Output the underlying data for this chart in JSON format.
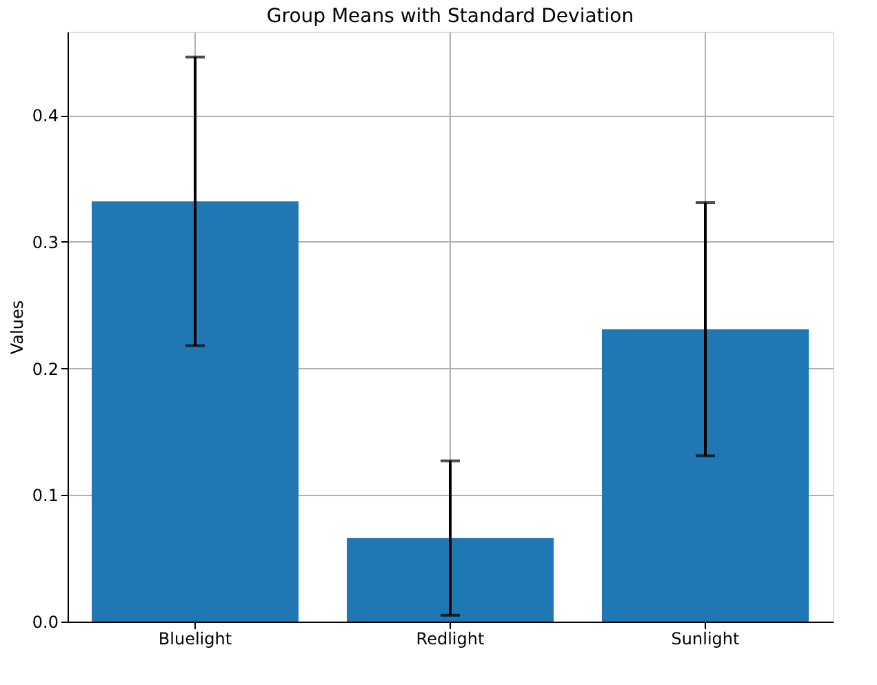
{
  "chart_data": {
    "type": "bar",
    "title": "Group Means with Standard Deviation",
    "ylabel": "Values",
    "categories": [
      "Bluelight",
      "Redlight",
      "Sunlight"
    ],
    "values": [
      0.332,
      0.066,
      0.231
    ],
    "errors": [
      0.114,
      0.061,
      0.1
    ],
    "color": "#1f77b4",
    "ylim": [
      0,
      0.466
    ],
    "yticks": [
      {
        "value": 0,
        "label": "0.0"
      },
      {
        "value": 0.1,
        "label": "0.1"
      },
      {
        "value": 0.2,
        "label": "0.2"
      },
      {
        "value": 0.3,
        "label": "0.3"
      },
      {
        "value": 0.4,
        "label": "0.4"
      }
    ],
    "grid": true
  }
}
